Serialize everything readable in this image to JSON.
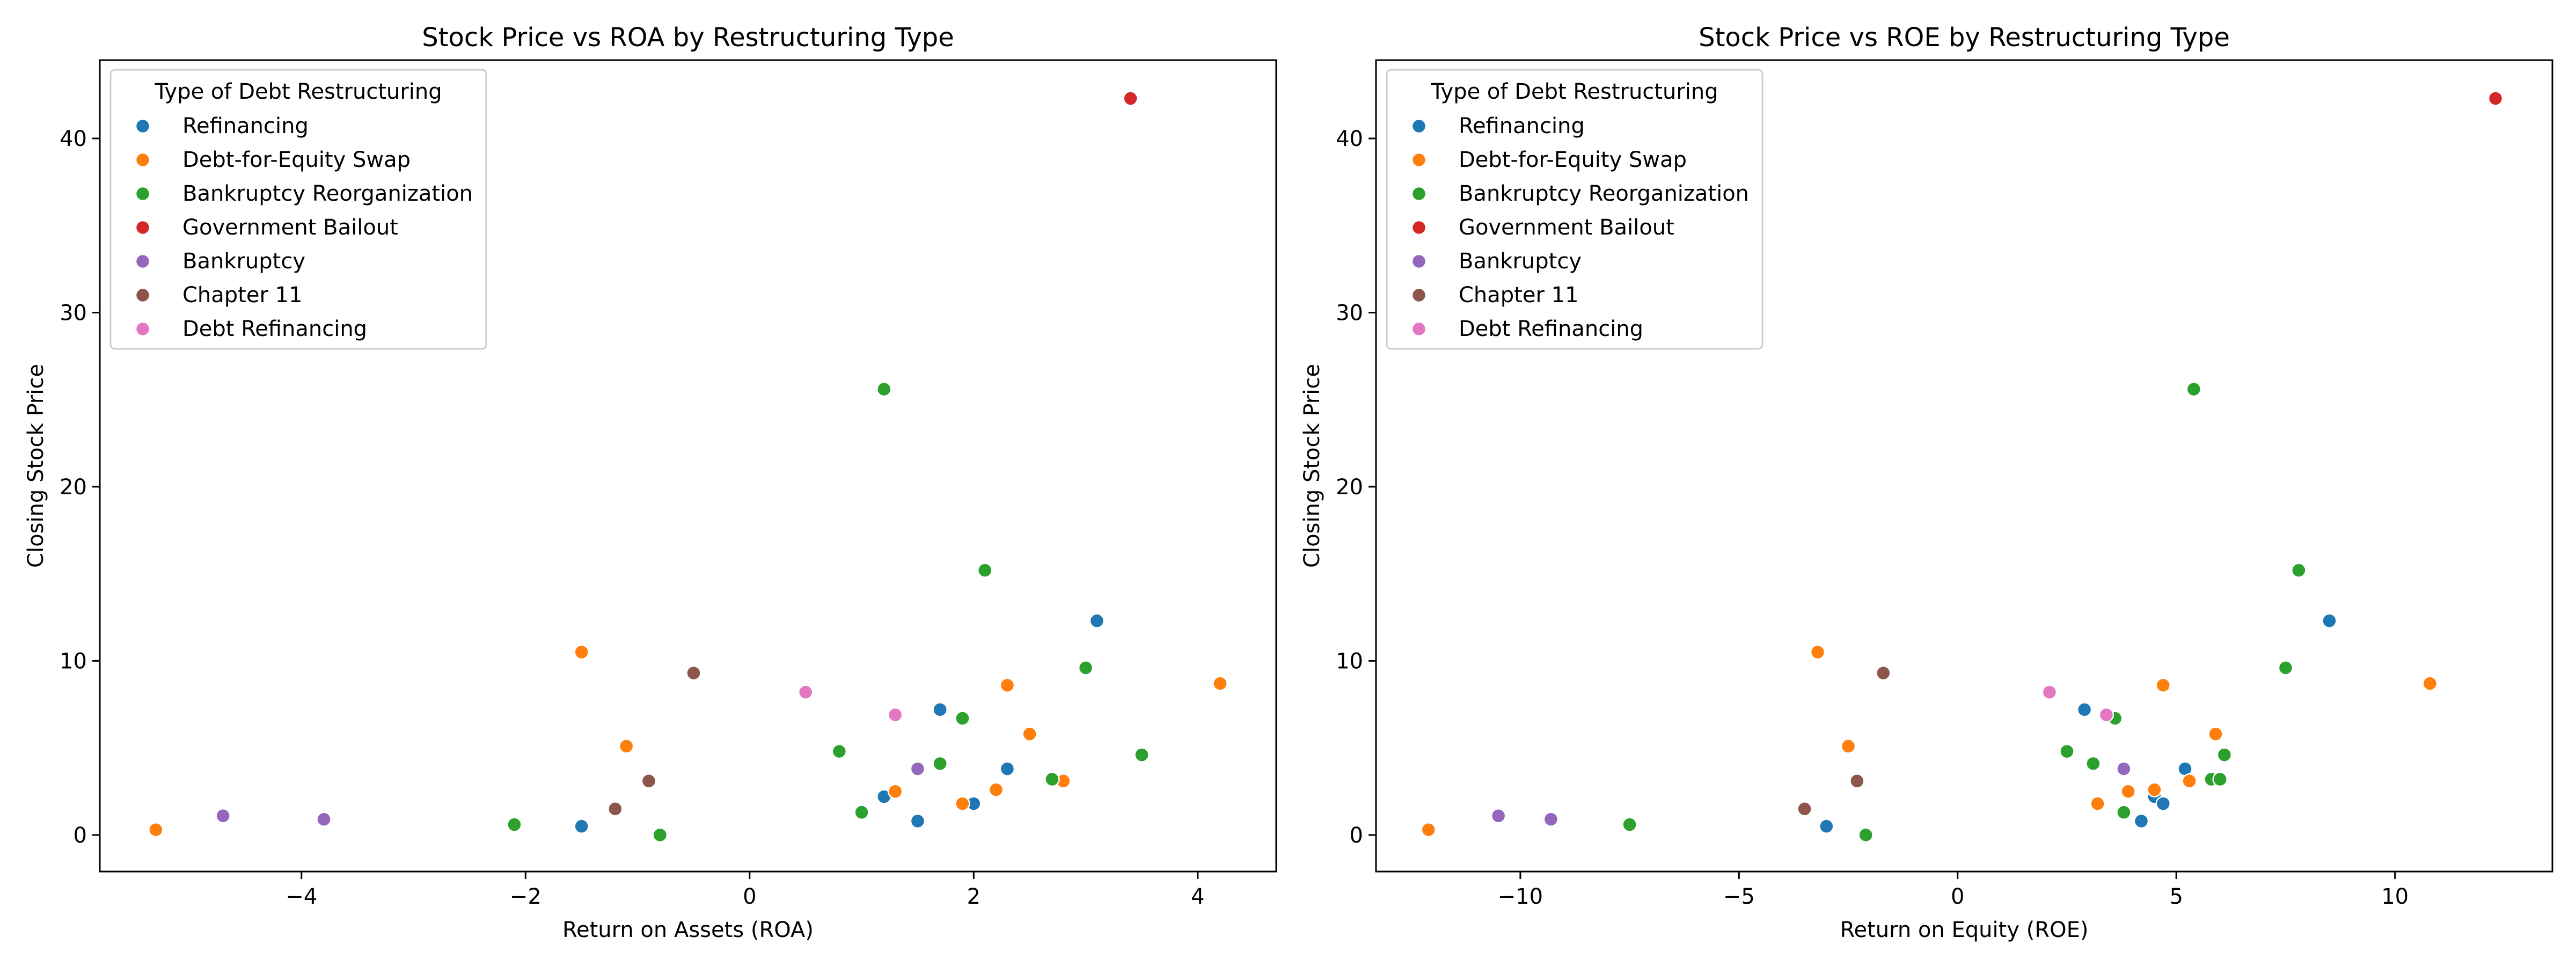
{
  "chart_data": [
    {
      "type": "scatter",
      "title": "Stock Price vs ROA by Restructuring Type",
      "xlabel": "Return on Assets (ROA)",
      "ylabel": "Closing Stock Price",
      "xlim": [
        -5.8,
        4.7
      ],
      "ylim": [
        -2.1,
        44.5
      ],
      "xticks": [
        -4,
        -2,
        0,
        2,
        4
      ],
      "yticks": [
        0,
        10,
        20,
        30,
        40
      ],
      "grid": false,
      "legend": {
        "title": "Type of Debt Restructuring",
        "placement": "top-left"
      },
      "series": [
        {
          "name": "Refinancing",
          "color": "#1f77b4",
          "points": [
            [
              -1.5,
              0.5
            ],
            [
              1.2,
              2.2
            ],
            [
              1.5,
              0.8
            ],
            [
              1.7,
              7.2
            ],
            [
              2.0,
              1.8
            ],
            [
              2.3,
              3.8
            ],
            [
              3.1,
              12.3
            ]
          ]
        },
        {
          "name": "Debt-for-Equity Swap",
          "color": "#ff7f0e",
          "points": [
            [
              -5.3,
              0.3
            ],
            [
              -1.5,
              10.5
            ],
            [
              -1.1,
              5.1
            ],
            [
              1.3,
              2.5
            ],
            [
              1.9,
              1.8
            ],
            [
              2.2,
              2.6
            ],
            [
              2.3,
              8.6
            ],
            [
              2.5,
              5.8
            ],
            [
              2.8,
              3.1
            ],
            [
              4.2,
              8.7
            ]
          ]
        },
        {
          "name": "Bankruptcy Reorganization",
          "color": "#2ca02c",
          "points": [
            [
              -2.1,
              0.6
            ],
            [
              -0.8,
              0.0
            ],
            [
              0.8,
              4.8
            ],
            [
              1.0,
              1.3
            ],
            [
              1.2,
              25.6
            ],
            [
              1.7,
              4.1
            ],
            [
              1.9,
              6.7
            ],
            [
              2.1,
              15.2
            ],
            [
              2.7,
              3.2
            ],
            [
              3.0,
              9.6
            ],
            [
              3.5,
              4.6
            ]
          ]
        },
        {
          "name": "Government Bailout",
          "color": "#d62728",
          "points": [
            [
              3.4,
              42.3
            ]
          ]
        },
        {
          "name": "Bankruptcy",
          "color": "#9467bd",
          "points": [
            [
              -4.7,
              1.1
            ],
            [
              -3.8,
              0.9
            ],
            [
              1.5,
              3.8
            ]
          ]
        },
        {
          "name": "Chapter 11",
          "color": "#8c564b",
          "points": [
            [
              -1.2,
              1.5
            ],
            [
              -0.9,
              3.1
            ],
            [
              -0.5,
              9.3
            ]
          ]
        },
        {
          "name": "Debt Refinancing",
          "color": "#e377c2",
          "points": [
            [
              0.5,
              8.2
            ],
            [
              1.3,
              6.9
            ]
          ]
        }
      ]
    },
    {
      "type": "scatter",
      "title": "Stock Price vs ROE by Restructuring Type",
      "xlabel": "Return on Equity (ROE)",
      "ylabel": "Closing Stock Price",
      "xlim": [
        -13.3,
        13.6
      ],
      "ylim": [
        -2.1,
        44.5
      ],
      "xticks": [
        -10,
        -5,
        0,
        5,
        10
      ],
      "yticks": [
        0,
        10,
        20,
        30,
        40
      ],
      "grid": false,
      "legend": {
        "title": "Type of Debt Restructuring",
        "placement": "top-left"
      },
      "series": [
        {
          "name": "Refinancing",
          "color": "#1f77b4",
          "points": [
            [
              -3.0,
              0.5
            ],
            [
              2.9,
              7.2
            ],
            [
              4.2,
              0.8
            ],
            [
              4.5,
              2.2
            ],
            [
              4.7,
              1.8
            ],
            [
              5.2,
              3.8
            ],
            [
              8.5,
              12.3
            ]
          ]
        },
        {
          "name": "Debt-for-Equity Swap",
          "color": "#ff7f0e",
          "points": [
            [
              -12.1,
              0.3
            ],
            [
              -3.2,
              10.5
            ],
            [
              -2.5,
              5.1
            ],
            [
              3.2,
              1.8
            ],
            [
              3.9,
              2.5
            ],
            [
              4.5,
              2.6
            ],
            [
              4.7,
              8.6
            ],
            [
              5.3,
              3.1
            ],
            [
              5.9,
              5.8
            ],
            [
              10.8,
              8.7
            ]
          ]
        },
        {
          "name": "Bankruptcy Reorganization",
          "color": "#2ca02c",
          "points": [
            [
              -7.5,
              0.6
            ],
            [
              -2.1,
              0.0
            ],
            [
              2.5,
              4.8
            ],
            [
              3.1,
              4.1
            ],
            [
              3.6,
              6.7
            ],
            [
              3.8,
              1.3
            ],
            [
              5.4,
              25.6
            ],
            [
              5.8,
              3.2
            ],
            [
              6.0,
              3.2
            ],
            [
              6.1,
              4.6
            ],
            [
              7.5,
              9.6
            ],
            [
              7.8,
              15.2
            ]
          ]
        },
        {
          "name": "Government Bailout",
          "color": "#d62728",
          "points": [
            [
              12.3,
              42.3
            ]
          ]
        },
        {
          "name": "Bankruptcy",
          "color": "#9467bd",
          "points": [
            [
              -10.5,
              1.1
            ],
            [
              -9.3,
              0.9
            ],
            [
              3.8,
              3.8
            ]
          ]
        },
        {
          "name": "Chapter 11",
          "color": "#8c564b",
          "points": [
            [
              -3.5,
              1.5
            ],
            [
              -2.3,
              3.1
            ],
            [
              -1.7,
              9.3
            ]
          ]
        },
        {
          "name": "Debt Refinancing",
          "color": "#e377c2",
          "points": [
            [
              2.1,
              8.2
            ],
            [
              3.4,
              6.9
            ]
          ]
        }
      ]
    }
  ]
}
